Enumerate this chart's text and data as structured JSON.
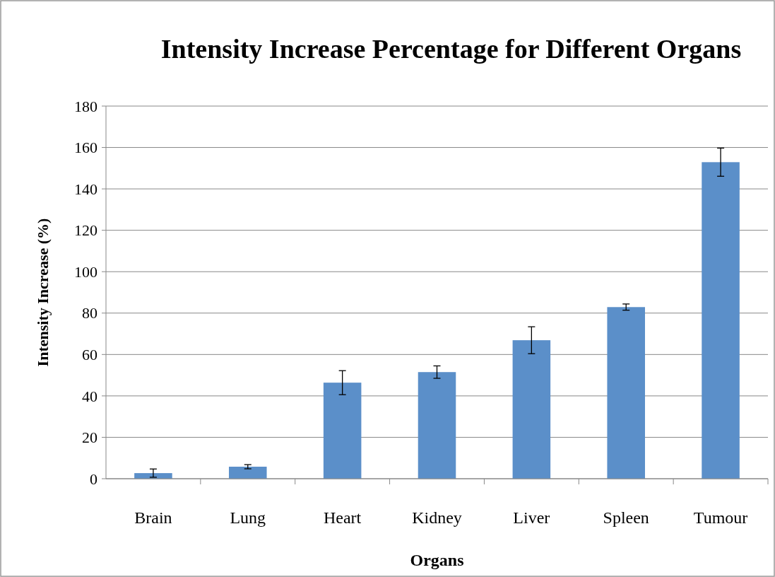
{
  "chart_data": {
    "type": "bar",
    "title": "Intensity Increase Percentage for Different Organs",
    "xlabel": "Organs",
    "ylabel": "Intensity Increase (%)",
    "categories": [
      "Brain",
      "Lung",
      "Heart",
      "Kidney",
      "Liver",
      "Spleen",
      "Tumour"
    ],
    "values": [
      2.7,
      5.8,
      46.4,
      51.5,
      66.9,
      82.9,
      152.9
    ],
    "errors": [
      2,
      1,
      5.8,
      3,
      6.5,
      1.5,
      6.8
    ],
    "color": "#5b8fc9",
    "ylim": [
      0,
      180
    ],
    "yticks": [
      0,
      20,
      40,
      60,
      80,
      100,
      120,
      140,
      160,
      180
    ],
    "grid": "y"
  }
}
